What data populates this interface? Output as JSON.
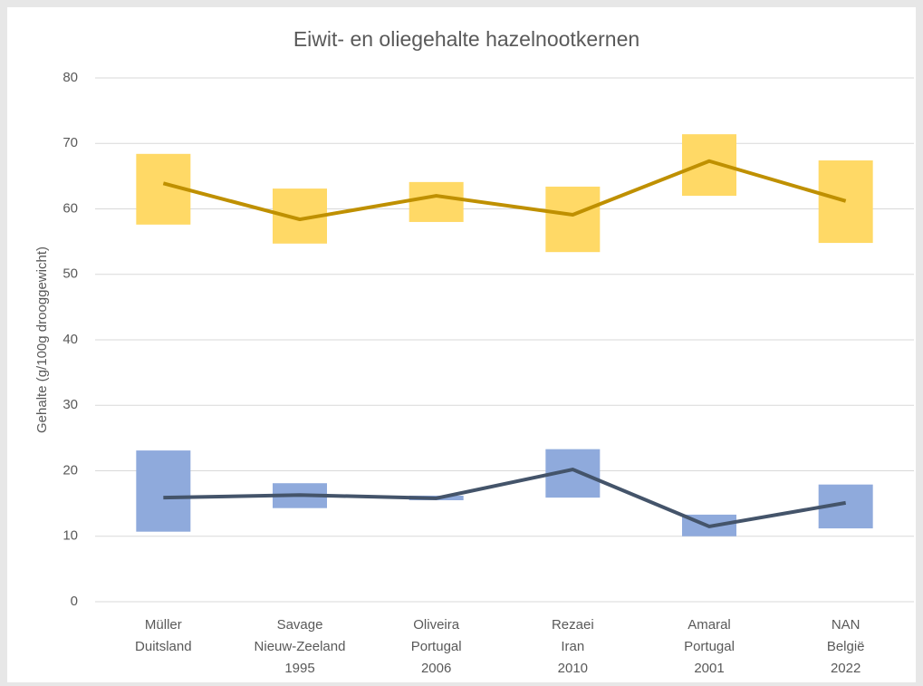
{
  "chart_data": {
    "type": "line",
    "title": "Eiwit- en oliegehalte hazelnootkernen",
    "y_label": "Gehalte (g/100g drooggewicht)",
    "categories": [
      "Müller\nDuitsland",
      "Savage\nNieuw-Zeeland\n1995",
      "Oliveira\nPortugal\n2006",
      "Rezaei\nIran\n2010",
      "Amaral\nPortugal\n2001",
      "NAN\nBelgië\n2022"
    ],
    "series": [
      {
        "color": "#bf9000",
        "range_color": "#ffd966",
        "values": [
          63.9,
          58.4,
          62.0,
          59.1,
          67.3,
          61.2
        ],
        "low": [
          57.6,
          54.7,
          58.0,
          53.4,
          62.0,
          54.8
        ],
        "high": [
          68.4,
          63.1,
          64.1,
          63.4,
          71.4,
          67.4
        ]
      },
      {
        "color": "#44546a",
        "range_color": "#8faadc",
        "values": [
          15.9,
          16.3,
          15.8,
          20.2,
          11.5,
          15.1
        ],
        "low": [
          10.7,
          14.3,
          15.5,
          15.9,
          10.0,
          11.2
        ],
        "high": [
          23.1,
          18.1,
          16.2,
          23.3,
          13.3,
          17.9
        ]
      }
    ],
    "ylim": [
      0,
      80
    ],
    "yticks": [
      0,
      10,
      20,
      30,
      40,
      50,
      60,
      70,
      80
    ],
    "grid": true
  }
}
